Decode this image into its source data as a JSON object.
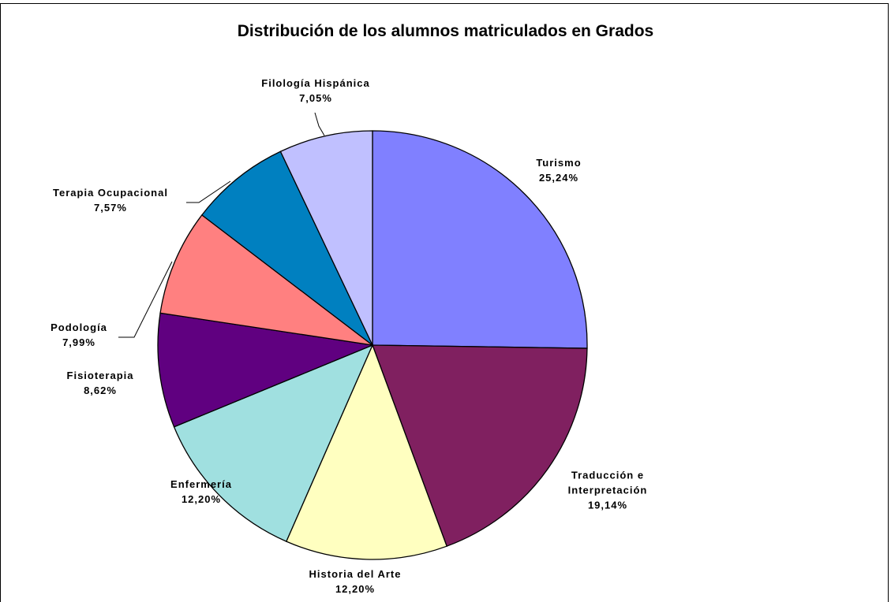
{
  "chart_data": {
    "type": "pie",
    "title": "Distribución de los alumnos matriculados en Grados",
    "categories": [
      "Turismo",
      "Traducción e Interpretación",
      "Historia del Arte",
      "Enfermería",
      "Fisioterapia",
      "Podología",
      "Terapia Ocupacional",
      "Filología Hispánica"
    ],
    "values": [
      25.24,
      19.14,
      12.2,
      12.2,
      8.62,
      7.99,
      7.57,
      7.05
    ],
    "value_labels": [
      "25,24%",
      "19,14%",
      "12,20%",
      "12,20%",
      "8,62%",
      "7,99%",
      "7,57%",
      "7,05%"
    ],
    "colors": [
      "#8080ff",
      "#802060",
      "#ffffc0",
      "#a0e0e0",
      "#600080",
      "#ff8080",
      "#0080c0",
      "#c0c0ff"
    ]
  }
}
